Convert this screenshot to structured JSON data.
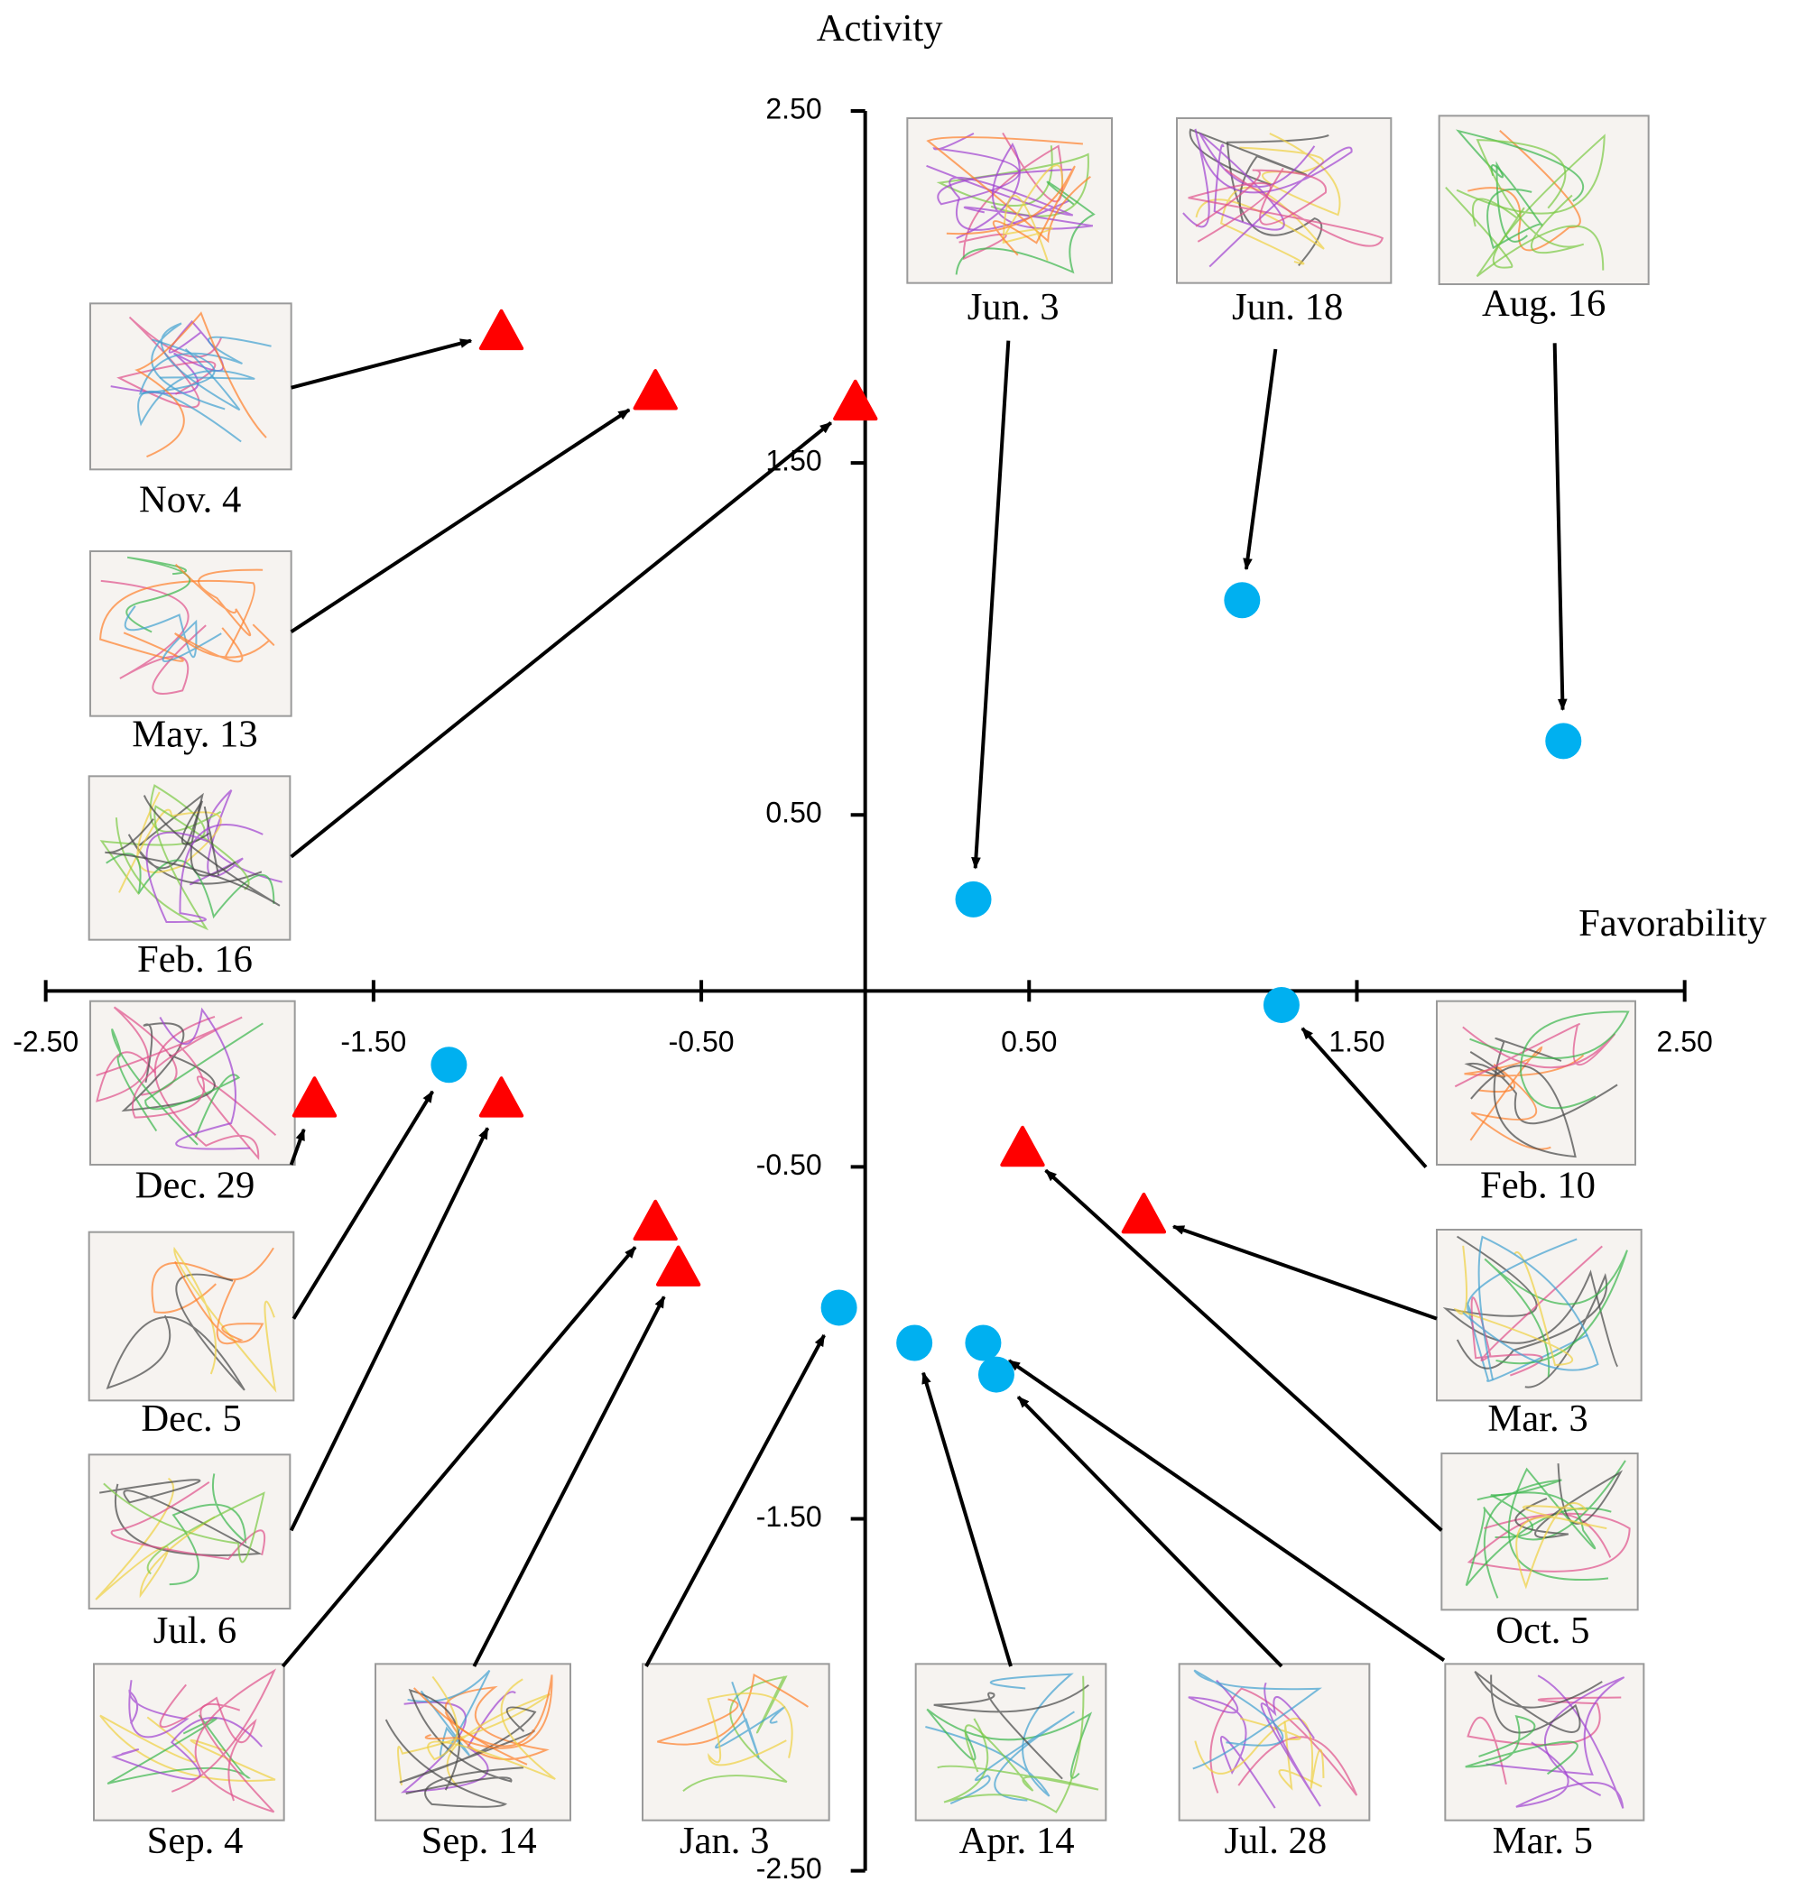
{
  "chart_data": {
    "type": "scatter",
    "x_label": "Favorability",
    "y_label": "Activity",
    "xlim": [
      -2.5,
      2.5
    ],
    "ylim": [
      -2.5,
      2.5
    ],
    "xticks": [
      {
        "value": -2.5,
        "label": "-2.50"
      },
      {
        "value": -1.5,
        "label": "-1.50"
      },
      {
        "value": -0.5,
        "label": "-0.50"
      },
      {
        "value": 0.5,
        "label": "0.50"
      },
      {
        "value": 1.5,
        "label": "1.50"
      },
      {
        "value": 2.5,
        "label": "2.50"
      }
    ],
    "yticks": [
      {
        "value": -2.5,
        "label": "-2.50"
      },
      {
        "value": -1.5,
        "label": "-1.50"
      },
      {
        "value": -0.5,
        "label": "-0.50"
      },
      {
        "value": 0.5,
        "label": "0.50"
      },
      {
        "value": 1.5,
        "label": "1.50"
      },
      {
        "value": 2.5,
        "label": "2.50"
      }
    ],
    "series": [
      {
        "color": "#ff0000",
        "marker": "triangle",
        "labels": [
          "Nov. 4",
          "May. 13",
          "Feb. 16",
          "Dec. 29",
          "Jul. 6",
          "Sep. 4",
          "Sep. 14",
          "Oct. 5",
          "Mar. 3"
        ],
        "x": [
          -1.11,
          -0.64,
          -0.03,
          -1.68,
          -1.11,
          -0.64,
          -0.57,
          0.48,
          0.85
        ],
        "y": [
          1.87,
          1.7,
          1.67,
          -0.31,
          -0.31,
          -0.66,
          -0.79,
          -0.45,
          -0.64
        ]
      },
      {
        "color": "#00b0f0",
        "marker": "circle",
        "labels": [
          "Jun. 3",
          "Jun. 18",
          "Aug. 16",
          "Feb. 10",
          "Dec. 5",
          "Jan. 3",
          "Apr. 14",
          "Mar. 5",
          "Jul. 28"
        ],
        "x": [
          0.33,
          1.15,
          2.13,
          1.27,
          -1.27,
          -0.08,
          0.15,
          0.36,
          0.4
        ],
        "y": [
          0.26,
          1.11,
          0.71,
          -0.04,
          -0.21,
          -0.9,
          -1.0,
          -1.0,
          -1.09
        ]
      }
    ]
  }
}
